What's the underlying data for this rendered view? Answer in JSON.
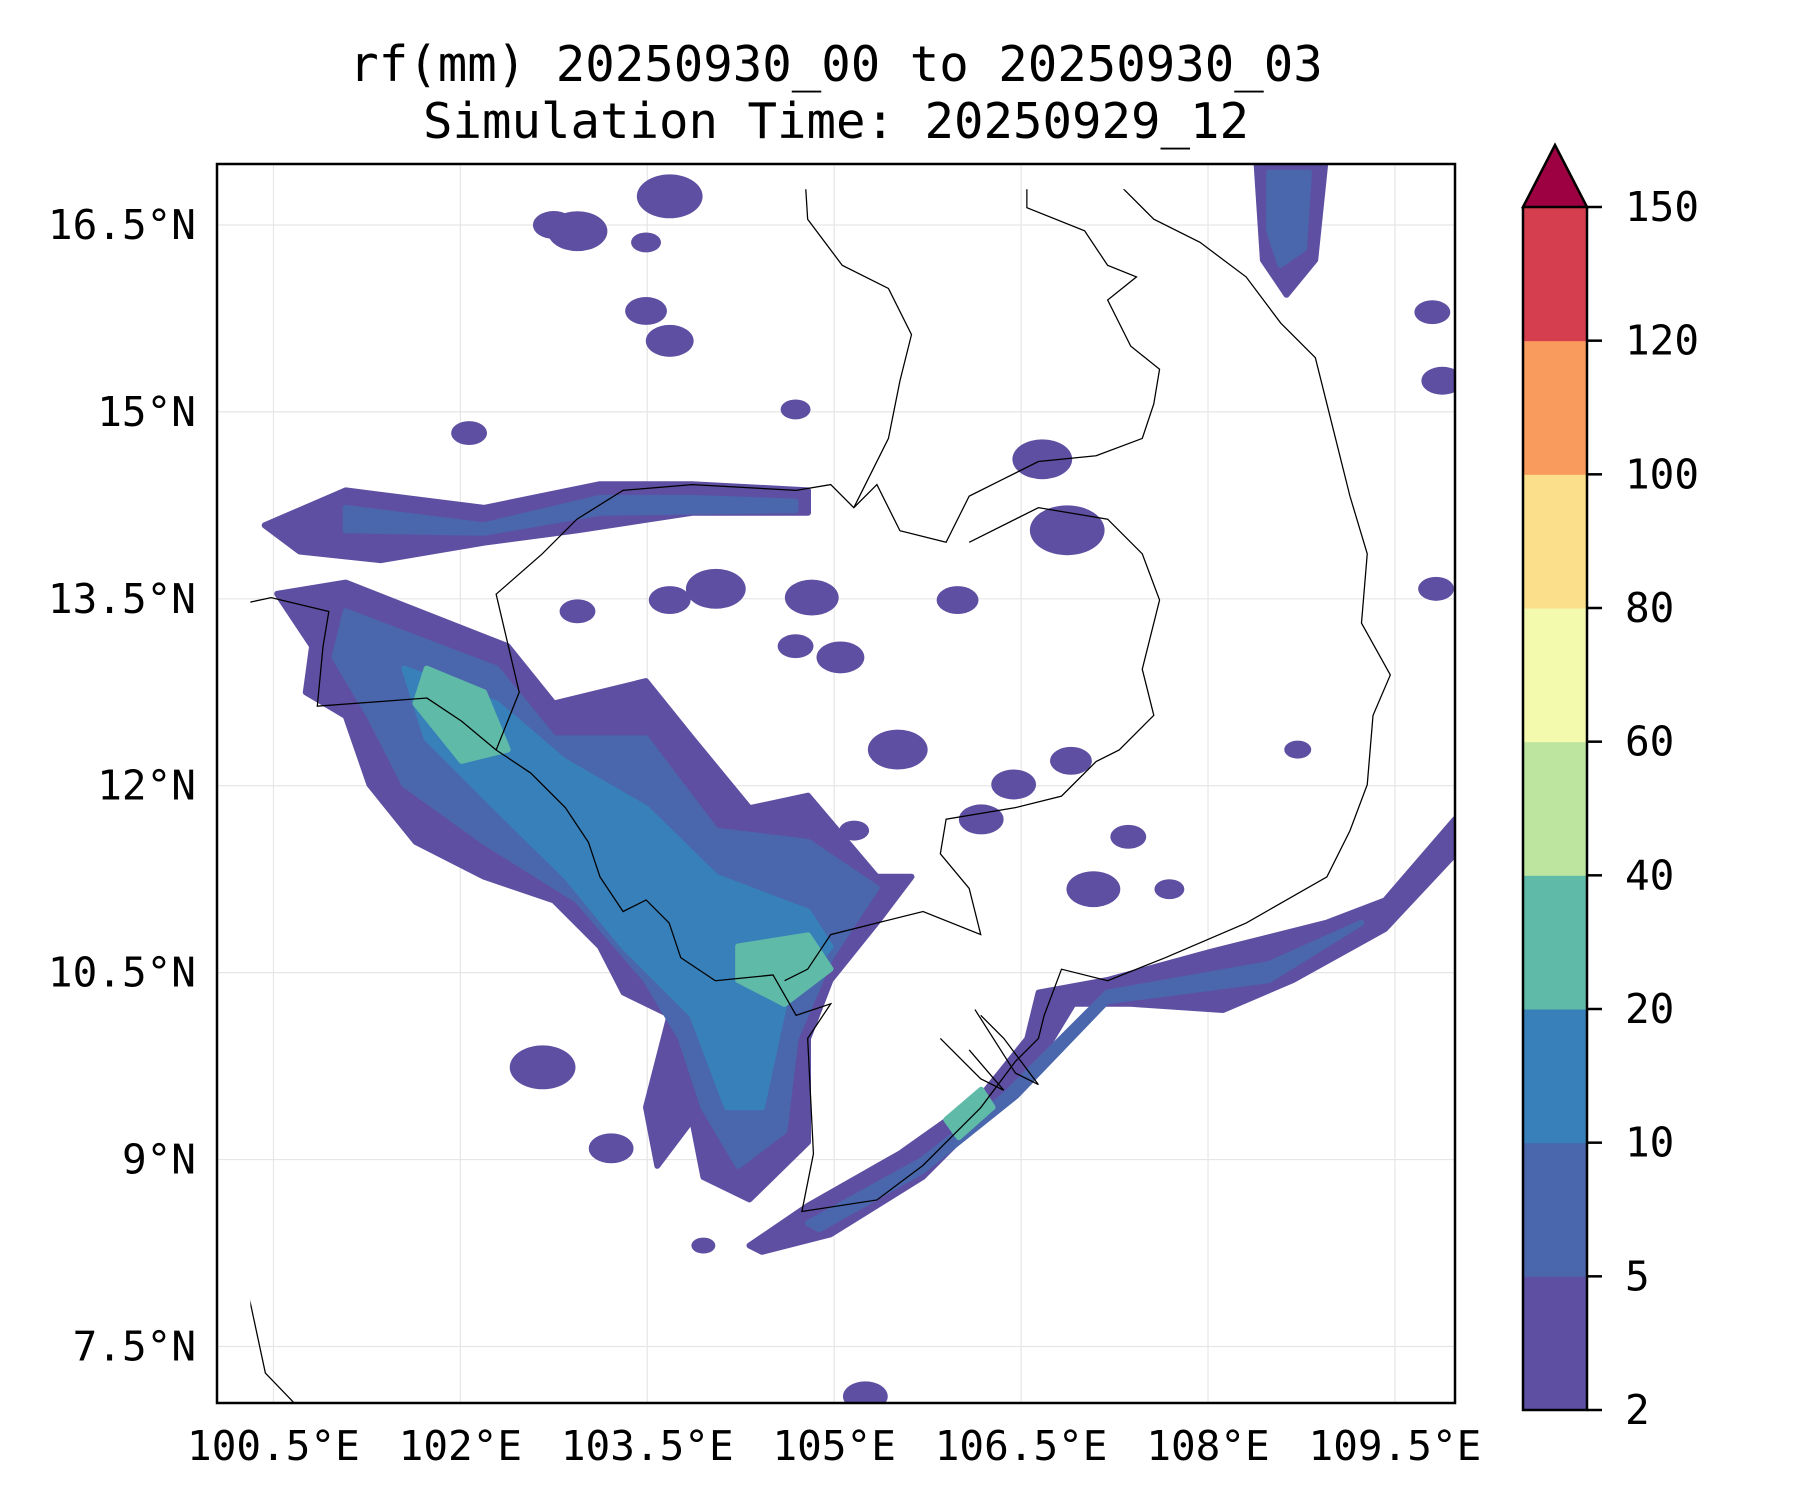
{
  "chart_data": {
    "type": "heatmap",
    "subtype": "filled-contour map",
    "title": [
      "rf(mm) 20250930_00 to 20250930_03",
      "Simulation Time: 20250929_12"
    ],
    "xlabel": "",
    "ylabel": "",
    "xlim": [
      100.05,
      109.97
    ],
    "ylim": [
      7.06,
      16.99
    ],
    "grid": true,
    "x_ticks": [
      100.5,
      102,
      103.5,
      105,
      106.5,
      108,
      109.5
    ],
    "x_tick_labels": [
      "100.5°E",
      "102°E",
      "103.5°E",
      "105°E",
      "106.5°E",
      "108°E",
      "109.5°E"
    ],
    "y_ticks": [
      16.5,
      15,
      13.5,
      12,
      10.5,
      9,
      7.5
    ],
    "y_tick_labels": [
      "16.5°N",
      "15°N",
      "13.5°N",
      "12°N",
      "10.5°N",
      "9°N",
      "7.5°N"
    ],
    "colorbar": {
      "levels": [
        2,
        5,
        10,
        20,
        40,
        60,
        80,
        100,
        120,
        150
      ],
      "tick_labels": [
        "2",
        "5",
        "10",
        "20",
        "40",
        "60",
        "80",
        "100",
        "120",
        "150"
      ],
      "colors": [
        "#5e4fa2",
        "#4a66ac",
        "#3880b9",
        "#5fbaa8",
        "#bee5a0",
        "#f3faad",
        "#fbdf8b",
        "#f99b5c",
        "#d53e4f"
      ],
      "extend_max_color": "#9e0142",
      "placement": "right"
    },
    "contours": [
      {
        "level": 0,
        "name": "central-band",
        "lonlat": [
          [
            100.53,
            13.54
          ],
          [
            101.08,
            13.63
          ],
          [
            102.38,
            13.12
          ],
          [
            102.75,
            12.66
          ],
          [
            103.49,
            12.84
          ],
          [
            103.86,
            12.38
          ],
          [
            104.32,
            11.82
          ],
          [
            104.79,
            11.92
          ],
          [
            105.34,
            11.27
          ],
          [
            105.62,
            11.27
          ],
          [
            105.34,
            10.9
          ],
          [
            104.97,
            10.44
          ],
          [
            104.79,
            9.97
          ],
          [
            104.79,
            9.14
          ],
          [
            104.32,
            8.68
          ],
          [
            103.95,
            8.86
          ],
          [
            103.86,
            9.32
          ],
          [
            103.58,
            8.95
          ],
          [
            103.49,
            9.42
          ],
          [
            103.68,
            10.16
          ],
          [
            103.31,
            10.34
          ],
          [
            103.12,
            10.71
          ],
          [
            102.75,
            11.08
          ],
          [
            102.19,
            11.27
          ],
          [
            101.64,
            11.55
          ],
          [
            101.27,
            12.01
          ],
          [
            101.08,
            12.56
          ],
          [
            100.76,
            12.75
          ],
          [
            100.81,
            13.12
          ]
        ]
      },
      {
        "level": 1,
        "name": "central-band",
        "lonlat": [
          [
            101.08,
            13.4
          ],
          [
            102.29,
            12.94
          ],
          [
            102.75,
            12.38
          ],
          [
            103.49,
            12.38
          ],
          [
            104.05,
            11.64
          ],
          [
            104.79,
            11.55
          ],
          [
            105.34,
            11.18
          ],
          [
            104.97,
            10.62
          ],
          [
            104.69,
            9.97
          ],
          [
            104.6,
            9.23
          ],
          [
            104.23,
            8.95
          ],
          [
            103.95,
            9.42
          ],
          [
            103.77,
            9.97
          ],
          [
            103.49,
            10.44
          ],
          [
            102.94,
            11.08
          ],
          [
            102.19,
            11.55
          ],
          [
            101.55,
            12.01
          ],
          [
            101.27,
            12.56
          ],
          [
            100.99,
            13.03
          ]
        ]
      },
      {
        "level": 2,
        "name": "central-band",
        "lonlat": [
          [
            101.55,
            12.94
          ],
          [
            102.29,
            12.66
          ],
          [
            102.83,
            12.2
          ],
          [
            103.49,
            11.82
          ],
          [
            104.05,
            11.27
          ],
          [
            104.79,
            10.99
          ],
          [
            104.97,
            10.71
          ],
          [
            104.6,
            10.25
          ],
          [
            104.42,
            9.42
          ],
          [
            104.14,
            9.42
          ],
          [
            103.86,
            10.16
          ],
          [
            103.31,
            10.71
          ],
          [
            102.85,
            11.27
          ],
          [
            102.29,
            11.82
          ],
          [
            101.73,
            12.38
          ]
        ]
      },
      {
        "level": 3,
        "name": "central-core-north",
        "lonlat": [
          [
            101.73,
            12.94
          ],
          [
            102.19,
            12.75
          ],
          [
            102.38,
            12.29
          ],
          [
            102.01,
            12.2
          ],
          [
            101.64,
            12.66
          ]
        ]
      },
      {
        "level": 3,
        "name": "central-core-south",
        "lonlat": [
          [
            104.23,
            10.71
          ],
          [
            104.79,
            10.8
          ],
          [
            104.97,
            10.53
          ],
          [
            104.6,
            10.25
          ],
          [
            104.23,
            10.44
          ]
        ]
      },
      {
        "level": 0,
        "name": "north-band",
        "lonlat": [
          [
            100.43,
            14.09
          ],
          [
            101.08,
            14.37
          ],
          [
            102.19,
            14.23
          ],
          [
            103.12,
            14.42
          ],
          [
            103.86,
            14.42
          ],
          [
            104.79,
            14.37
          ],
          [
            104.79,
            14.19
          ],
          [
            103.86,
            14.19
          ],
          [
            102.94,
            14.05
          ],
          [
            102.19,
            13.95
          ],
          [
            101.36,
            13.81
          ],
          [
            100.71,
            13.88
          ]
        ]
      },
      {
        "level": 1,
        "name": "north-band",
        "lonlat": [
          [
            101.08,
            14.23
          ],
          [
            102.19,
            14.09
          ],
          [
            103.12,
            14.31
          ],
          [
            103.86,
            14.31
          ],
          [
            104.69,
            14.28
          ],
          [
            104.69,
            14.21
          ],
          [
            103.12,
            14.19
          ],
          [
            102.19,
            14.03
          ],
          [
            101.08,
            14.05
          ]
        ]
      },
      {
        "level": 0,
        "name": "southeast-coast-band",
        "lonlat": [
          [
            104.32,
            8.31
          ],
          [
            104.79,
            8.63
          ],
          [
            105.53,
            9.05
          ],
          [
            106.18,
            9.51
          ],
          [
            106.55,
            9.97
          ],
          [
            106.64,
            10.34
          ],
          [
            107.19,
            10.44
          ],
          [
            108.03,
            10.67
          ],
          [
            108.95,
            10.9
          ],
          [
            109.42,
            11.08
          ],
          [
            109.98,
            11.73
          ],
          [
            109.98,
            11.45
          ],
          [
            109.42,
            10.85
          ],
          [
            108.68,
            10.44
          ],
          [
            108.12,
            10.2
          ],
          [
            107.38,
            10.25
          ],
          [
            106.92,
            10.25
          ],
          [
            106.64,
            9.79
          ],
          [
            106.27,
            9.42
          ],
          [
            105.71,
            8.86
          ],
          [
            104.97,
            8.4
          ],
          [
            104.42,
            8.26
          ]
        ]
      },
      {
        "level": 1,
        "name": "southeast-coast-band",
        "lonlat": [
          [
            104.79,
            8.49
          ],
          [
            105.71,
            9.0
          ],
          [
            106.36,
            9.51
          ],
          [
            107.19,
            10.34
          ],
          [
            108.49,
            10.57
          ],
          [
            109.23,
            10.9
          ],
          [
            108.49,
            10.44
          ],
          [
            107.19,
            10.27
          ],
          [
            106.46,
            9.51
          ],
          [
            105.71,
            8.91
          ],
          [
            104.88,
            8.44
          ]
        ]
      },
      {
        "level": 3,
        "name": "southeast-coast-core",
        "lonlat": [
          [
            105.9,
            9.32
          ],
          [
            106.18,
            9.56
          ],
          [
            106.27,
            9.42
          ],
          [
            106.0,
            9.18
          ]
        ]
      },
      {
        "level": 0,
        "name": "northeast-blob",
        "lonlat": [
          [
            108.39,
            16.99
          ],
          [
            108.94,
            16.99
          ],
          [
            108.86,
            16.22
          ],
          [
            108.63,
            15.94
          ],
          [
            108.44,
            16.22
          ]
        ]
      },
      {
        "level": 1,
        "name": "northeast-blob",
        "lonlat": [
          [
            108.49,
            16.92
          ],
          [
            108.81,
            16.92
          ],
          [
            108.77,
            16.31
          ],
          [
            108.58,
            16.18
          ],
          [
            108.49,
            16.45
          ]
        ]
      }
    ],
    "cells": [
      [
        102.07,
        14.83,
        0.12
      ],
      [
        106.67,
        14.62,
        0.2
      ],
      [
        106.87,
        14.05,
        0.25
      ],
      [
        104.82,
        13.51,
        0.18
      ],
      [
        105.05,
        13.03,
        0.16
      ],
      [
        105.51,
        12.29,
        0.2
      ],
      [
        106.44,
        12.01,
        0.15
      ],
      [
        106.9,
        12.2,
        0.14
      ],
      [
        107.08,
        11.17,
        0.18
      ],
      [
        107.36,
        11.59,
        0.12
      ],
      [
        107.69,
        11.17,
        0.1
      ],
      [
        106.18,
        11.73,
        0.15
      ],
      [
        102.66,
        9.74,
        0.22
      ],
      [
        103.21,
        9.09,
        0.15
      ],
      [
        103.95,
        8.31,
        0.08
      ],
      [
        105.25,
        7.1,
        0.15
      ],
      [
        108.72,
        12.29,
        0.09
      ],
      [
        109.83,
        13.58,
        0.12
      ],
      [
        109.88,
        15.25,
        0.14
      ],
      [
        109.8,
        15.8,
        0.12
      ],
      [
        103.49,
        15.81,
        0.14
      ],
      [
        103.68,
        15.57,
        0.16
      ],
      [
        102.94,
        16.45,
        0.2
      ],
      [
        103.68,
        16.73,
        0.22
      ],
      [
        104.05,
        13.58,
        0.2
      ],
      [
        103.68,
        13.49,
        0.14
      ],
      [
        102.94,
        13.4,
        0.12
      ],
      [
        103.49,
        16.36,
        0.1
      ],
      [
        102.75,
        16.5,
        0.14
      ],
      [
        104.69,
        15.02,
        0.1
      ],
      [
        105.99,
        13.49,
        0.14
      ],
      [
        104.69,
        13.12,
        0.12
      ],
      [
        105.16,
        11.64,
        0.1
      ]
    ]
  }
}
